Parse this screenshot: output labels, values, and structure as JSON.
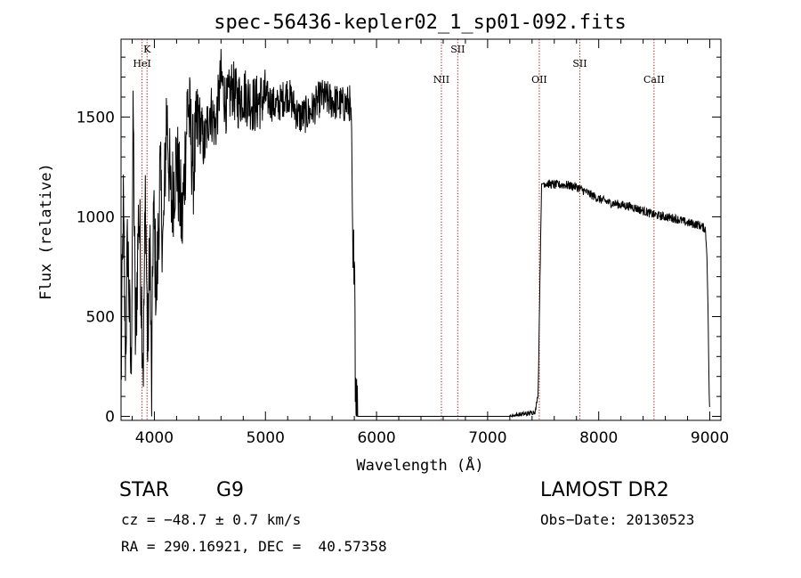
{
  "chart_data": {
    "type": "line",
    "title": "spec-56436-kepler02_1_sp01-092.fits",
    "xlabel": "Wavelength (Å)",
    "ylabel": "Flux (relative)",
    "xlim": [
      3700,
      9100
    ],
    "ylim": [
      -20,
      1890
    ],
    "x_ticks": [
      4000,
      5000,
      6000,
      7000,
      8000,
      9000
    ],
    "y_ticks": [
      0,
      500,
      1000,
      1500
    ],
    "grid": false,
    "spectrum_knots": [
      [
        3700,
        150
      ],
      [
        3720,
        1050
      ],
      [
        3740,
        300
      ],
      [
        3760,
        900
      ],
      [
        3790,
        180
      ],
      [
        3810,
        1520
      ],
      [
        3830,
        350
      ],
      [
        3860,
        1050
      ],
      [
        3880,
        700
      ],
      [
        3900,
        250
      ],
      [
        3920,
        1150
      ],
      [
        3940,
        280
      ],
      [
        3960,
        950
      ],
      [
        3975,
        10
      ],
      [
        3990,
        1050
      ],
      [
        4020,
        600
      ],
      [
        4050,
        1200
      ],
      [
        4080,
        850
      ],
      [
        4110,
        1550
      ],
      [
        4150,
        1050
      ],
      [
        4200,
        1300
      ],
      [
        4250,
        950
      ],
      [
        4300,
        1600
      ],
      [
        4350,
        1250
      ],
      [
        4400,
        1500
      ],
      [
        4450,
        1350
      ],
      [
        4500,
        1550
      ],
      [
        4550,
        1450
      ],
      [
        4600,
        1700
      ],
      [
        4650,
        1550
      ],
      [
        4700,
        1650
      ],
      [
        4750,
        1580
      ],
      [
        4800,
        1620
      ],
      [
        4900,
        1560
      ],
      [
        5000,
        1600
      ],
      [
        5100,
        1550
      ],
      [
        5200,
        1620
      ],
      [
        5300,
        1500
      ],
      [
        5400,
        1520
      ],
      [
        5500,
        1600
      ],
      [
        5600,
        1580
      ],
      [
        5700,
        1560
      ],
      [
        5760,
        1570
      ],
      [
        5775,
        1420
      ],
      [
        5790,
        600
      ],
      [
        5800,
        1000
      ],
      [
        5810,
        200
      ],
      [
        5825,
        0
      ],
      [
        5900,
        0
      ],
      [
        6500,
        0
      ],
      [
        7000,
        0
      ],
      [
        7200,
        0
      ],
      [
        7300,
        10
      ],
      [
        7380,
        15
      ],
      [
        7430,
        25
      ],
      [
        7455,
        120
      ],
      [
        7470,
        650
      ],
      [
        7485,
        1150
      ],
      [
        7500,
        1170
      ],
      [
        7600,
        1160
      ],
      [
        7700,
        1160
      ],
      [
        7800,
        1150
      ],
      [
        7900,
        1120
      ],
      [
        8000,
        1090
      ],
      [
        8100,
        1070
      ],
      [
        8200,
        1060
      ],
      [
        8300,
        1050
      ],
      [
        8400,
        1030
      ],
      [
        8500,
        1010
      ],
      [
        8600,
        1000
      ],
      [
        8700,
        990
      ],
      [
        8800,
        970
      ],
      [
        8900,
        960
      ],
      [
        8960,
        940
      ],
      [
        8975,
        800
      ],
      [
        8985,
        500
      ],
      [
        8995,
        100
      ],
      [
        9000,
        0
      ]
    ],
    "lines": [
      {
        "label": "K",
        "x": 3934,
        "label_row": 0
      },
      {
        "label": "HeI",
        "x": 3889,
        "label_row": 1
      },
      {
        "label": "SII",
        "x": 6731,
        "label_row": 0
      },
      {
        "label": "NII",
        "x": 6584,
        "label_row": 2
      },
      {
        "label": "OII",
        "x": 7465,
        "label_row": 2
      },
      {
        "label": "SII",
        "x": 7830,
        "label_row": 1
      },
      {
        "label": "CaII",
        "x": 8498,
        "label_row": 2
      }
    ],
    "colors": {
      "spectrum": "#000000",
      "line_markers": "#b00000",
      "axes": "#000000"
    }
  },
  "info": {
    "object_type": "STAR",
    "subclass": "G9",
    "survey": "LAMOST DR2",
    "cz": "cz = −48.7 ± 0.7 km/s",
    "obs_date": "Obs−Date: 20130523",
    "coords": "RA = 290.16921, DEC =  40.57358"
  }
}
